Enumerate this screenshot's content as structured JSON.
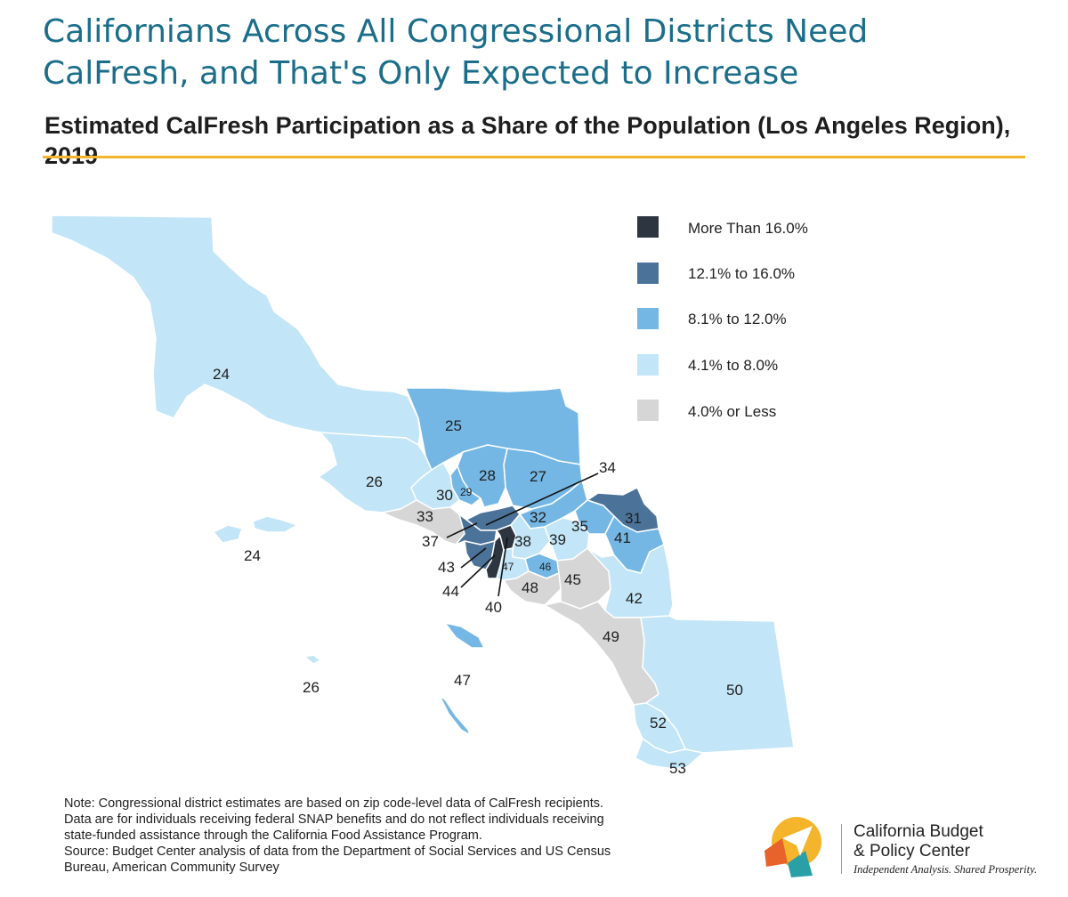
{
  "header": {
    "title": "Californians Across All Congressional Districts Need CalFresh, and That's Only Expected to Increase",
    "subtitle": "Estimated CalFresh Participation as a Share of the Population (Los Angeles Region), 2019"
  },
  "colors": {
    "c16plus": "#2d3640",
    "c12_16": "#4b7399",
    "c8_12": "#74b7e5",
    "c4_8": "#c2e5f7",
    "c4less": "#d6d6d6",
    "title": "#1b6e8a",
    "rule": "#f4b52c"
  },
  "legend": [
    {
      "label": "More Than 16.0%",
      "color": "#2d3640"
    },
    {
      "label": "12.1% to 16.0%",
      "color": "#4b7399"
    },
    {
      "label": "8.1% to 12.0%",
      "color": "#74b7e5"
    },
    {
      "label": "4.1% to 8.0%",
      "color": "#c2e5f7"
    },
    {
      "label": "4.0% or Less",
      "color": "#d6d6d6"
    }
  ],
  "district_labels": {
    "d24": "24",
    "d24_islands": "24",
    "d25": "25",
    "d26": "26",
    "d26_islands": "26",
    "d27": "27",
    "d28": "28",
    "d29": "29",
    "d30": "30",
    "d31": "31",
    "d32": "32",
    "d33": "33",
    "d34": "34",
    "d35": "35",
    "d37": "37",
    "d38": "38",
    "d39": "39",
    "d40": "40",
    "d41": "41",
    "d42": "42",
    "d43": "43",
    "d44": "44",
    "d45": "45",
    "d46": "46",
    "d47": "47",
    "d47_islands": "47",
    "d48": "48",
    "d49": "49",
    "d50": "50",
    "d52": "52",
    "d53": "53"
  },
  "notes": [
    "Note: Congressional district estimates are based on zip code-level data of CalFresh recipients.",
    "Data are for individuals receiving federal SNAP benefits and do not reflect individuals receiving",
    "state-funded assistance through the California Food Assistance Program.",
    "Source: Budget Center analysis of data from the Department of Social Services and US Census",
    "Bureau, American Community Survey"
  ],
  "logo": {
    "org_line1": "California Budget",
    "org_line2": "& Policy Center",
    "tagline": "Independent Analysis. Shared Prosperity.",
    "colors": {
      "yellow": "#f4b52c",
      "orange": "#e8632b",
      "teal": "#2aa0a6",
      "blue": "#1b6e8a"
    }
  }
}
